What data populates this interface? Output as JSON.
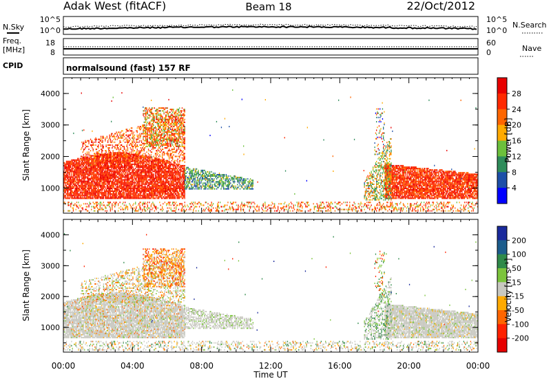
{
  "header": {
    "station": "Adak West (fitACF)",
    "beam": "Beam 18",
    "date": "22/Oct/2012"
  },
  "strips": {
    "nsky": {
      "label": "N.Sky",
      "top": "10^5",
      "bottom": "10^0"
    },
    "nsearch": {
      "label": "N.Search",
      "top": "10^5",
      "bottom": "10^0"
    },
    "freq": {
      "label_1": "Freq.",
      "label_2": "[MHz]",
      "top": "18",
      "bottom": "8"
    },
    "nave": {
      "label": "Nave",
      "top": "60",
      "bottom": "0"
    },
    "cpid": {
      "label": "CPID",
      "text": "normalsound (fast) 157 RF"
    }
  },
  "chart_data": [
    {
      "type": "heatmap",
      "name": "power",
      "ylabel": "Slant Range [km]",
      "ylim": [
        200,
        4500
      ],
      "y_ticks": [
        "4000",
        "3000",
        "2000",
        "1000"
      ],
      "x_ticks": [
        "00:00",
        "04:00",
        "08:00",
        "12:00",
        "16:00",
        "20:00",
        "00:00"
      ],
      "colorbar": {
        "label": "Power [dB]",
        "ticks": [
          "28",
          "24",
          "20",
          "16",
          "12",
          "8",
          "4"
        ],
        "colors": [
          "#e80000",
          "#ff2a00",
          "#ff6600",
          "#ffaa00",
          "#6cc03c",
          "#2e8c5a",
          "#1d4fa8",
          "#0000ff"
        ]
      }
    },
    {
      "type": "heatmap",
      "name": "velocity",
      "ylabel": "Slant Range [km]",
      "ylim": [
        200,
        4500
      ],
      "y_ticks": [
        "4000",
        "3000",
        "2000",
        "1000"
      ],
      "x_ticks": [
        "00:00",
        "04:00",
        "08:00",
        "12:00",
        "16:00",
        "20:00",
        "00:00"
      ],
      "xlabel": "Time UT",
      "colorbar": {
        "label": "Velocity [m s⁻¹]",
        "ticks": [
          "200",
          "100",
          "50",
          "15",
          "-15",
          "-50",
          "-100",
          "-200"
        ],
        "colors": [
          "#1a2a9c",
          "#1c5c8c",
          "#2f8a4a",
          "#7cc43c",
          "#c8c8c0",
          "#ffaa00",
          "#ff6600",
          "#ff2200",
          "#e60000"
        ]
      }
    }
  ]
}
